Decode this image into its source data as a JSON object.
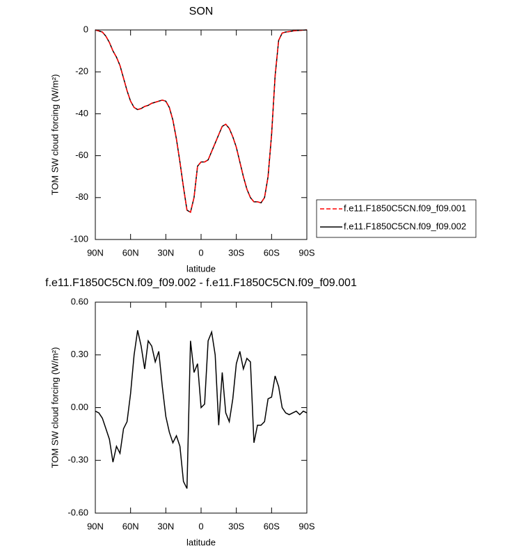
{
  "chart_data": [
    {
      "type": "line",
      "title": "SON",
      "xlabel": "latitude",
      "ylabel": "TOM SW cloud forcing (W/m²)",
      "x": [
        90,
        87,
        84,
        81,
        78,
        75,
        72,
        69,
        66,
        63,
        60,
        57,
        54,
        51,
        48,
        45,
        42,
        39,
        36,
        33,
        30,
        27,
        24,
        21,
        18,
        15,
        12,
        9,
        6,
        3,
        0,
        -3,
        -6,
        -9,
        -12,
        -15,
        -18,
        -21,
        -24,
        -27,
        -30,
        -33,
        -36,
        -39,
        -42,
        -45,
        -48,
        -51,
        -54,
        -57,
        -60,
        -63,
        -66,
        -69,
        -72,
        -75,
        -78,
        -81,
        -84,
        -87,
        -90
      ],
      "xlim": [
        90,
        -90
      ],
      "xticks": [
        {
          "value": 90,
          "label": "90N"
        },
        {
          "value": 60,
          "label": "60N"
        },
        {
          "value": 30,
          "label": "30N"
        },
        0,
        {
          "value": -30,
          "label": "30S"
        },
        {
          "value": -60,
          "label": "60S"
        },
        {
          "value": -90,
          "label": "90S"
        }
      ],
      "ylim": [
        -100,
        0
      ],
      "yticks": [
        -100,
        -80,
        -60,
        -40,
        -20,
        0
      ],
      "legend": "right",
      "series": [
        {
          "name": "f.e11.F1850C5CN.f09_f09.001",
          "color": "#ff0000",
          "dash": true,
          "values": [
            0,
            -0.5,
            -1,
            -3,
            -6,
            -10,
            -13,
            -17,
            -23,
            -29,
            -34,
            -37,
            -38,
            -37.5,
            -36.5,
            -36,
            -35,
            -34.5,
            -34,
            -33.5,
            -34,
            -37,
            -43,
            -52,
            -63,
            -75,
            -86,
            -87,
            -80,
            -65,
            -63,
            -63,
            -62,
            -58,
            -54,
            -50,
            -46,
            -45,
            -47,
            -51,
            -56,
            -63,
            -70,
            -76,
            -80,
            -82,
            -82,
            -82.5,
            -80,
            -70,
            -50,
            -22,
            -5,
            -1.5,
            -1,
            -0.8,
            -0.5,
            -0.3,
            -0.2,
            -0.1,
            0
          ]
        },
        {
          "name": "f.e11.F1850C5CN.f09_f09.002",
          "color": "#000000",
          "dash": false,
          "values": [
            0,
            -0.5,
            -1,
            -3,
            -6,
            -10,
            -13,
            -17,
            -23,
            -29,
            -34,
            -37,
            -38,
            -37.5,
            -36.5,
            -36,
            -35,
            -34.5,
            -34,
            -33.5,
            -34,
            -37,
            -43,
            -52,
            -63,
            -75,
            -86,
            -87,
            -80,
            -65,
            -63,
            -63,
            -62,
            -58,
            -54,
            -50,
            -46,
            -45,
            -47,
            -51,
            -56,
            -63,
            -70,
            -76,
            -80,
            -82,
            -82,
            -82.5,
            -80,
            -70,
            -50,
            -22,
            -5,
            -1.5,
            -1,
            -0.8,
            -0.5,
            -0.3,
            -0.2,
            -0.1,
            0
          ]
        }
      ]
    },
    {
      "type": "line",
      "title": "f.e11.F1850C5CN.f09_f09.002 - f.e11.F1850C5CN.f09_f09.001",
      "xlabel": "latitude",
      "ylabel": "TOM SW cloud forcing (W/m²)",
      "x": [
        90,
        87,
        84,
        81,
        78,
        75,
        72,
        69,
        66,
        63,
        60,
        57,
        54,
        51,
        48,
        45,
        42,
        39,
        36,
        33,
        30,
        27,
        24,
        21,
        18,
        15,
        12,
        9,
        6,
        3,
        0,
        -3,
        -6,
        -9,
        -12,
        -15,
        -18,
        -21,
        -24,
        -27,
        -30,
        -33,
        -36,
        -39,
        -42,
        -45,
        -48,
        -51,
        -54,
        -57,
        -60,
        -63,
        -66,
        -69,
        -72,
        -75,
        -78,
        -81,
        -84,
        -87,
        -90
      ],
      "xlim": [
        90,
        -90
      ],
      "xticks": [
        {
          "value": 90,
          "label": "90N"
        },
        {
          "value": 60,
          "label": "60N"
        },
        {
          "value": 30,
          "label": "30N"
        },
        0,
        {
          "value": -30,
          "label": "30S"
        },
        {
          "value": -60,
          "label": "60S"
        },
        {
          "value": -90,
          "label": "90S"
        }
      ],
      "ylim": [
        -0.6,
        0.6
      ],
      "yticks": [
        {
          "value": -0.6,
          "label": "-0.60"
        },
        {
          "value": -0.3,
          "label": "-0.30"
        },
        {
          "value": 0,
          "label": "0.00"
        },
        {
          "value": 0.3,
          "label": "0.30"
        },
        {
          "value": 0.6,
          "label": "0.60"
        }
      ],
      "series": [
        {
          "color": "#000000",
          "dash": false,
          "values": [
            -0.02,
            -0.03,
            -0.06,
            -0.12,
            -0.18,
            -0.31,
            -0.22,
            -0.26,
            -0.12,
            -0.08,
            0.08,
            0.3,
            0.44,
            0.35,
            0.22,
            0.38,
            0.35,
            0.26,
            0.32,
            0.12,
            -0.05,
            -0.14,
            -0.2,
            -0.16,
            -0.22,
            -0.42,
            -0.46,
            0.38,
            0.2,
            0.25,
            0,
            0.02,
            0.38,
            0.43,
            0.3,
            -0.1,
            0.2,
            -0.03,
            -0.08,
            0.05,
            0.25,
            0.32,
            0.22,
            0.28,
            0.26,
            -0.2,
            -0.1,
            -0.1,
            -0.08,
            0.05,
            0.06,
            0.18,
            0.12,
            0,
            -0.03,
            -0.04,
            -0.03,
            -0.02,
            -0.04,
            -0.02,
            -0.03
          ]
        }
      ]
    }
  ]
}
